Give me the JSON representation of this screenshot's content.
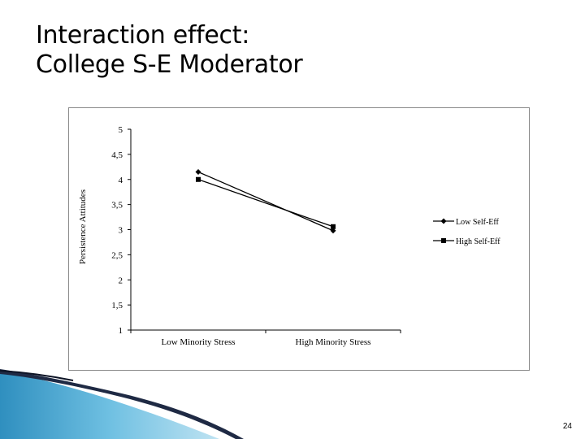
{
  "slide": {
    "title_line1": "Interaction effect:",
    "title_line2": "College S-E Moderator",
    "page_number": "24"
  },
  "chart_data": {
    "type": "line",
    "title": "",
    "ylabel": "Persistence Attitudes",
    "xlabel": "",
    "categories": [
      "Low  Minority Stress",
      "High  Minority Stress"
    ],
    "y_tick_labels": [
      "1",
      "1,5",
      "2",
      "2,5",
      "3",
      "3,5",
      "4",
      "4,5",
      "5"
    ],
    "ylim": [
      1,
      5
    ],
    "grid": false,
    "legend_position": "right",
    "series": [
      {
        "name": "Low Self-Eff",
        "marker": "diamond",
        "values": [
          4.15,
          2.98
        ]
      },
      {
        "name": "High Self-Eff",
        "marker": "square",
        "values": [
          4.0,
          3.06
        ]
      }
    ]
  },
  "colors": {
    "series_line": "#000000",
    "axis": "#000000",
    "frame": "#8a8a8a",
    "swoosh_dark": "#1f2a44",
    "swoosh_light": "#4aa6cf"
  }
}
